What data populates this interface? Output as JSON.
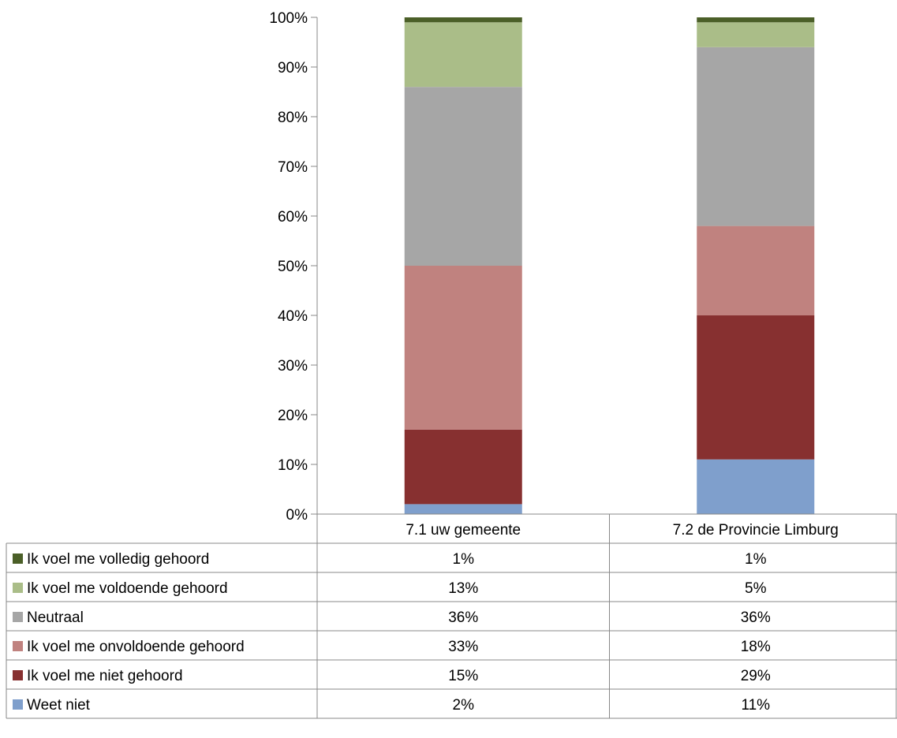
{
  "chart_data": {
    "type": "bar",
    "stacked": true,
    "percent_stacked": true,
    "title": "",
    "xlabel": "",
    "ylabel": "",
    "ylim": [
      0,
      100
    ],
    "y_ticks": [
      "0%",
      "10%",
      "20%",
      "30%",
      "40%",
      "50%",
      "60%",
      "70%",
      "80%",
      "90%",
      "100%"
    ],
    "grid": false,
    "legend": "data-table-below",
    "categories": [
      "7.1 uw gemeente",
      "7.2 de Provincie Limburg"
    ],
    "series": [
      {
        "name": "Weet niet",
        "values": [
          2,
          11
        ],
        "labels": [
          "2%",
          "11%"
        ],
        "color": "#7f9fcc"
      },
      {
        "name": "Ik voel me niet gehoord",
        "values": [
          15,
          29
        ],
        "labels": [
          "15%",
          "29%"
        ],
        "color": "#873030"
      },
      {
        "name": "Ik voel me onvoldoende gehoord",
        "values": [
          33,
          18
        ],
        "labels": [
          "33%",
          "18%"
        ],
        "color": "#c0827f"
      },
      {
        "name": "Neutraal",
        "values": [
          36,
          36
        ],
        "labels": [
          "36%",
          "36%"
        ],
        "color": "#a6a6a6"
      },
      {
        "name": "Ik voel me voldoende gehoord",
        "values": [
          13,
          5
        ],
        "labels": [
          "13%",
          "5%"
        ],
        "color": "#aabd88"
      },
      {
        "name": "Ik voel me volledig gehoord",
        "values": [
          1,
          1
        ],
        "labels": [
          "1%",
          "1%"
        ],
        "color": "#4b5f28"
      }
    ]
  }
}
